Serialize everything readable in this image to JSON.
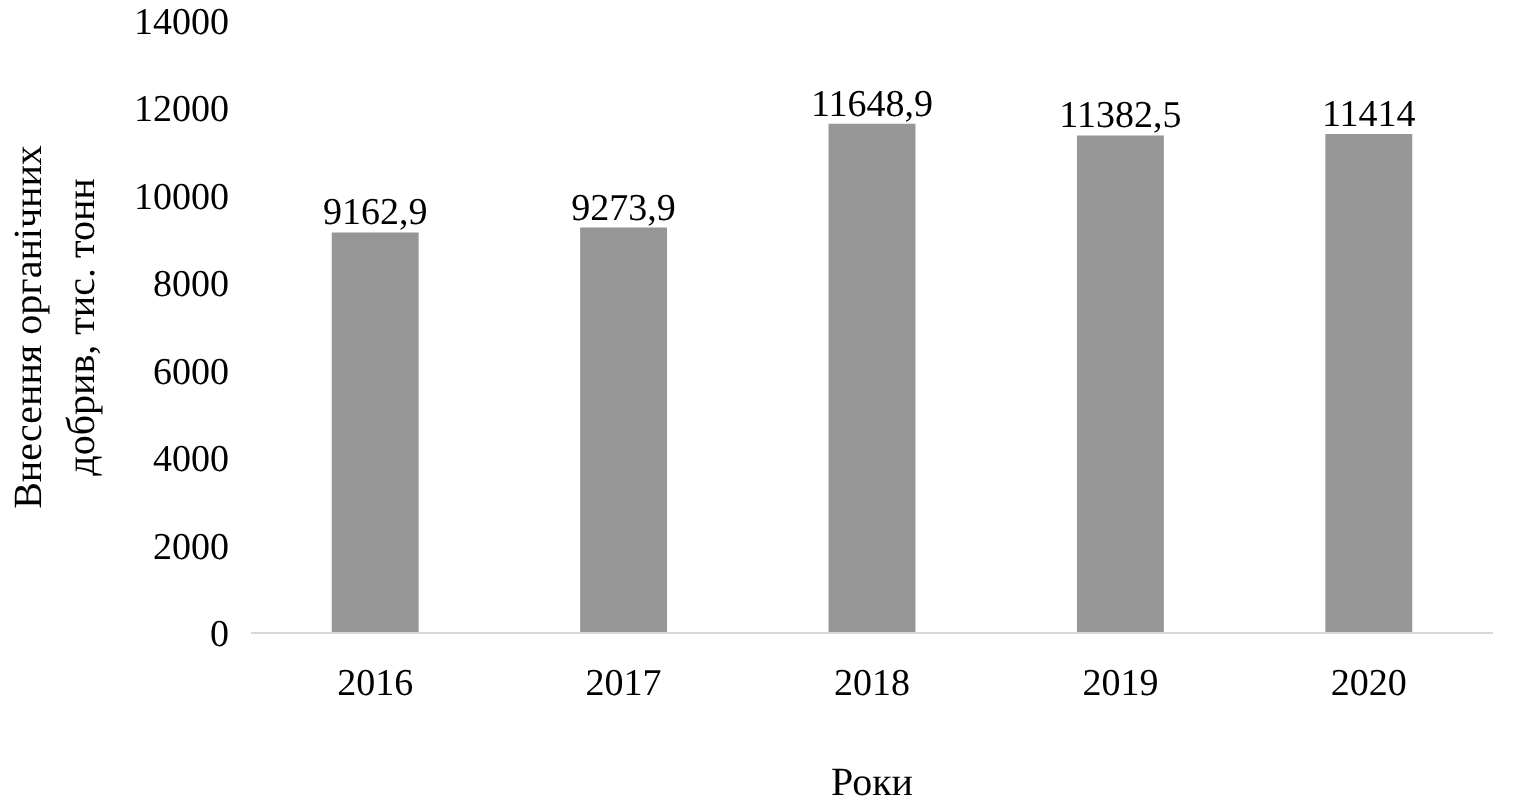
{
  "chart_data": {
    "type": "bar",
    "xlabel": "Роки",
    "ylabel": "Внесення органічних\nдобрив, тис. тонн",
    "categories": [
      "2016",
      "2017",
      "2018",
      "2019",
      "2020"
    ],
    "values": [
      9162.9,
      9273.9,
      11648.9,
      11382.5,
      11414
    ],
    "value_labels": [
      "9162,9",
      "9273,9",
      "11648,9",
      "11382,5",
      "11414"
    ],
    "color": "#969696",
    "ylim": [
      0,
      14000
    ],
    "yticks": [
      0,
      2000,
      4000,
      6000,
      8000,
      10000,
      12000,
      14000
    ],
    "grid": false
  }
}
